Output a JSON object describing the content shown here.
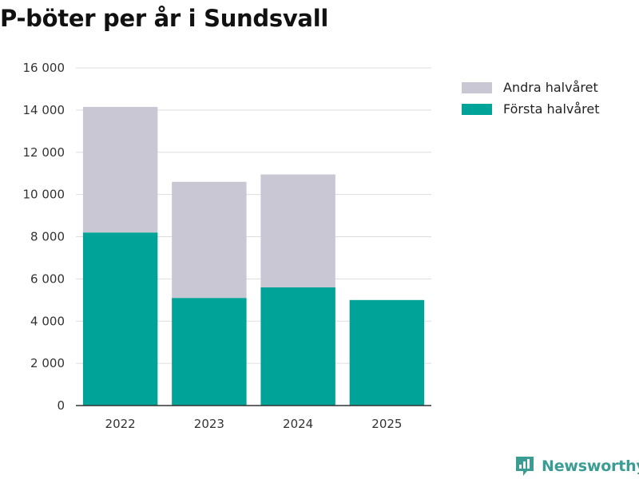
{
  "header": {
    "title": "P-böter per år i Sundsvall"
  },
  "brand": {
    "name": "Newsworthy"
  },
  "colors": {
    "first_half": "#00a398",
    "second_half": "#c8c7d3",
    "grid": "#dddddd",
    "axis": "#333333",
    "brand": "#3a9d93"
  },
  "chart_data": {
    "type": "bar",
    "stacked": true,
    "title": "P-böter per år i Sundsvall",
    "xlabel": "",
    "ylabel": "",
    "categories": [
      "2022",
      "2023",
      "2024",
      "2025"
    ],
    "series": [
      {
        "name": "Första halvåret",
        "color": "#00a398",
        "values": [
          8200,
          5100,
          5600,
          5000
        ]
      },
      {
        "name": "Andra halvåret",
        "color": "#c8c7d3",
        "values": [
          5950,
          5500,
          5350,
          0
        ]
      }
    ],
    "ylim": [
      0,
      16000
    ],
    "yticks": [
      0,
      2000,
      4000,
      6000,
      8000,
      10000,
      12000,
      14000,
      16000
    ],
    "ytick_labels": [
      "0",
      "2 000",
      "4 000",
      "6 000",
      "8 000",
      "10 000",
      "12 000",
      "14 000",
      "16 000"
    ],
    "legend_position": "top-right",
    "legend_order": [
      "Andra halvåret",
      "Första halvåret"
    ],
    "grid": true
  }
}
